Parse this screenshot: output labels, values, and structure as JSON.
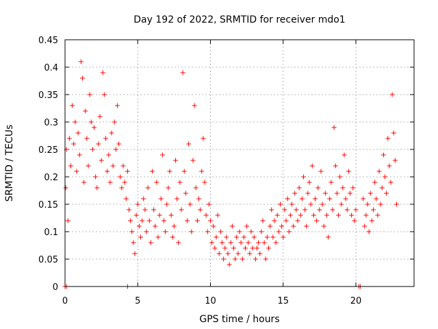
{
  "chart_data": {
    "type": "scatter",
    "title": "Day 192 of 2022, SRMTID for receiver mdo1",
    "xlabel": "GPS time / hours",
    "ylabel": "SRMTID / TECUs",
    "xlim": [
      0,
      24
    ],
    "ylim": [
      0,
      0.45
    ],
    "xticks": [
      0,
      5,
      10,
      15,
      20
    ],
    "yticks": [
      0,
      0.05,
      0.1,
      0.15,
      0.2,
      0.25,
      0.3,
      0.35,
      0.4,
      0.45
    ],
    "xtick_labels": [
      "0",
      "5",
      "10",
      "15",
      "20"
    ],
    "ytick_labels": [
      "0",
      "0.05",
      "0.1",
      "0.15",
      "0.2",
      "0.25",
      "0.3",
      "0.35",
      "0.4",
      "0.45"
    ],
    "grid": true,
    "marker": "+",
    "color": "#ff0000",
    "series": [
      {
        "name": "SRMTID",
        "x": [
          0.05,
          0.1,
          0.2,
          0.3,
          0.4,
          0.5,
          0.6,
          0.7,
          0.8,
          0.9,
          1.0,
          1.1,
          1.2,
          1.3,
          1.4,
          1.5,
          1.6,
          1.7,
          1.8,
          1.9,
          2.0,
          2.1,
          2.2,
          2.3,
          2.4,
          2.5,
          2.6,
          2.7,
          2.8,
          2.9,
          3.0,
          3.1,
          3.2,
          3.3,
          3.4,
          3.5,
          3.6,
          3.7,
          3.8,
          3.9,
          4.0,
          4.1,
          4.2,
          4.3,
          4.4,
          4.5,
          4.6,
          4.7,
          4.8,
          4.9,
          5.0,
          5.1,
          5.2,
          5.3,
          5.4,
          5.5,
          5.6,
          5.7,
          5.8,
          5.9,
          6.0,
          6.1,
          6.2,
          6.3,
          6.4,
          6.5,
          6.6,
          6.7,
          6.8,
          6.9,
          7.0,
          7.1,
          7.2,
          7.3,
          7.4,
          7.5,
          7.6,
          7.7,
          7.8,
          7.9,
          8.0,
          8.1,
          8.2,
          8.3,
          8.4,
          8.5,
          8.6,
          8.7,
          8.8,
          8.9,
          9.0,
          9.1,
          9.2,
          9.3,
          9.4,
          9.5,
          9.6,
          9.7,
          9.8,
          9.9,
          10.0,
          10.1,
          10.2,
          10.3,
          10.4,
          10.5,
          10.6,
          10.7,
          10.8,
          10.9,
          11.0,
          11.1,
          11.2,
          11.3,
          11.4,
          11.5,
          11.6,
          11.7,
          11.8,
          11.9,
          12.0,
          12.1,
          12.2,
          12.3,
          12.4,
          12.5,
          12.6,
          12.7,
          12.8,
          12.9,
          13.0,
          13.1,
          13.2,
          13.3,
          13.4,
          13.5,
          13.6,
          13.7,
          13.8,
          13.9,
          14.0,
          14.1,
          14.2,
          14.3,
          14.4,
          14.5,
          14.6,
          14.7,
          14.8,
          14.9,
          15.0,
          15.1,
          15.2,
          15.3,
          15.4,
          15.5,
          15.6,
          15.7,
          15.8,
          15.9,
          16.0,
          16.1,
          16.2,
          16.3,
          16.4,
          16.5,
          16.6,
          16.7,
          16.8,
          16.9,
          17.0,
          17.1,
          17.2,
          17.3,
          17.4,
          17.5,
          17.6,
          17.7,
          17.8,
          17.9,
          18.0,
          18.1,
          18.2,
          18.3,
          18.4,
          18.5,
          18.6,
          18.7,
          18.8,
          18.9,
          19.0,
          19.1,
          19.2,
          19.3,
          19.4,
          19.5,
          19.6,
          19.7,
          19.8,
          19.9,
          20.0,
          20.5,
          20.6,
          20.7,
          20.8,
          20.9,
          21.0,
          21.1,
          21.2,
          21.3,
          21.4,
          21.5,
          21.6,
          21.7,
          21.8,
          21.9,
          22.0,
          22.1,
          22.2,
          22.3,
          22.4,
          22.5,
          22.6,
          22.7,
          22.8,
          0.0,
          0.1,
          4.3,
          20.2,
          20.3
        ],
        "y": [
          0.18,
          0.25,
          0.12,
          0.27,
          0.22,
          0.33,
          0.26,
          0.3,
          0.21,
          0.28,
          0.24,
          0.41,
          0.38,
          0.19,
          0.32,
          0.27,
          0.22,
          0.35,
          0.3,
          0.25,
          0.29,
          0.2,
          0.18,
          0.26,
          0.31,
          0.23,
          0.39,
          0.35,
          0.27,
          0.21,
          0.24,
          0.19,
          0.28,
          0.22,
          0.3,
          0.25,
          0.33,
          0.26,
          0.2,
          0.18,
          0.22,
          0.19,
          0.16,
          0.21,
          0.14,
          0.12,
          0.1,
          0.08,
          0.06,
          0.13,
          0.15,
          0.11,
          0.09,
          0.12,
          0.16,
          0.14,
          0.1,
          0.18,
          0.12,
          0.08,
          0.21,
          0.14,
          0.11,
          0.19,
          0.09,
          0.13,
          0.16,
          0.24,
          0.12,
          0.1,
          0.15,
          0.18,
          0.21,
          0.13,
          0.09,
          0.11,
          0.23,
          0.16,
          0.08,
          0.19,
          0.14,
          0.39,
          0.21,
          0.17,
          0.12,
          0.26,
          0.15,
          0.1,
          0.23,
          0.33,
          0.18,
          0.12,
          0.16,
          0.14,
          0.21,
          0.27,
          0.19,
          0.13,
          0.1,
          0.15,
          0.12,
          0.08,
          0.11,
          0.07,
          0.09,
          0.13,
          0.06,
          0.1,
          0.08,
          0.05,
          0.07,
          0.09,
          0.06,
          0.04,
          0.08,
          0.11,
          0.07,
          0.05,
          0.09,
          0.06,
          0.1,
          0.08,
          0.05,
          0.09,
          0.07,
          0.11,
          0.08,
          0.06,
          0.1,
          0.07,
          0.09,
          0.05,
          0.07,
          0.08,
          0.06,
          0.1,
          0.12,
          0.08,
          0.05,
          0.09,
          0.07,
          0.11,
          0.14,
          0.09,
          0.12,
          0.08,
          0.13,
          0.1,
          0.15,
          0.11,
          0.09,
          0.14,
          0.12,
          0.16,
          0.1,
          0.13,
          0.15,
          0.11,
          0.17,
          0.14,
          0.12,
          0.18,
          0.13,
          0.16,
          0.2,
          0.14,
          0.11,
          0.17,
          0.19,
          0.15,
          0.22,
          0.13,
          0.16,
          0.12,
          0.18,
          0.14,
          0.21,
          0.15,
          0.11,
          0.17,
          0.13,
          0.09,
          0.16,
          0.19,
          0.14,
          0.29,
          0.22,
          0.17,
          0.13,
          0.2,
          0.15,
          0.18,
          0.24,
          0.16,
          0.14,
          0.21,
          0.17,
          0.13,
          0.18,
          0.12,
          0.14,
          0.16,
          0.11,
          0.13,
          0.15,
          0.1,
          0.17,
          0.12,
          0.14,
          0.19,
          0.16,
          0.13,
          0.21,
          0.15,
          0.18,
          0.24,
          0.2,
          0.17,
          0.27,
          0.22,
          0.19,
          0.35,
          0.28,
          0.23,
          0.15,
          0.0,
          0.0,
          0.0,
          0.0,
          0.0
        ]
      }
    ]
  }
}
